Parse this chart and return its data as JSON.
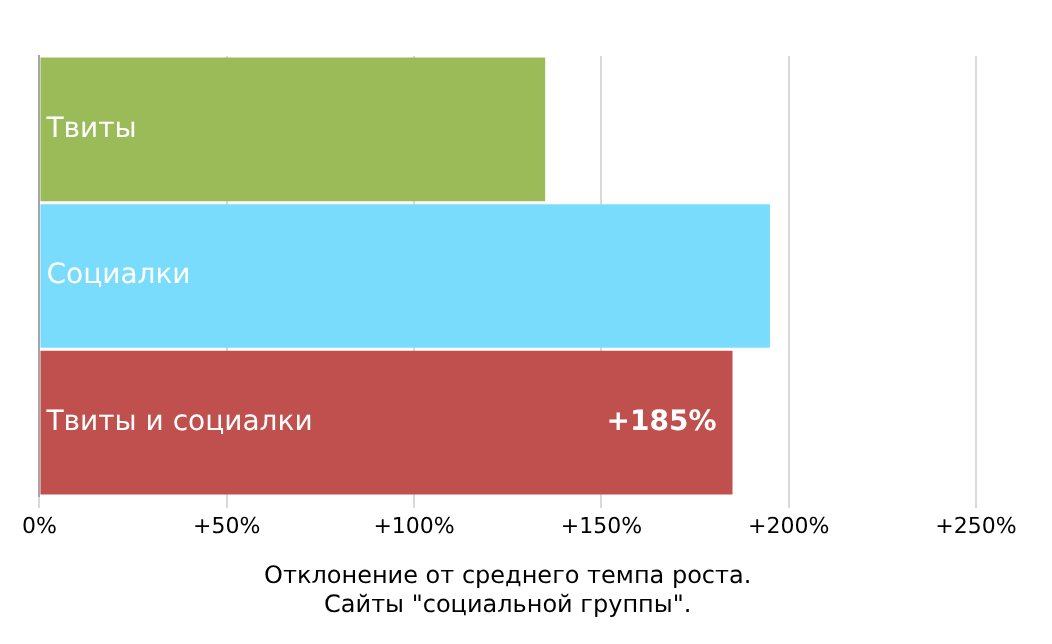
{
  "chart_data": {
    "type": "bar",
    "orientation": "horizontal",
    "xlabel": "Отклонение от среднего темпа роста.\nСайты \"социальной группы\".",
    "categories": [
      "Твиты",
      "Социалки",
      "Твиты и социалки"
    ],
    "values": [
      135,
      195,
      185
    ],
    "colors": [
      "#9bbb59",
      "#7adcfc",
      "#c0504d"
    ],
    "value_labels": [
      null,
      null,
      "+185%"
    ],
    "xlim": [
      0,
      250
    ],
    "xticks": [
      {
        "value": 0,
        "label": "0%"
      },
      {
        "value": 50,
        "label": "+50%"
      },
      {
        "value": 100,
        "label": "+100%"
      },
      {
        "value": 150,
        "label": "+150%"
      },
      {
        "value": 200,
        "label": "+200%"
      },
      {
        "value": 250,
        "label": "+250%"
      }
    ],
    "grid": "x",
    "legend": false
  }
}
